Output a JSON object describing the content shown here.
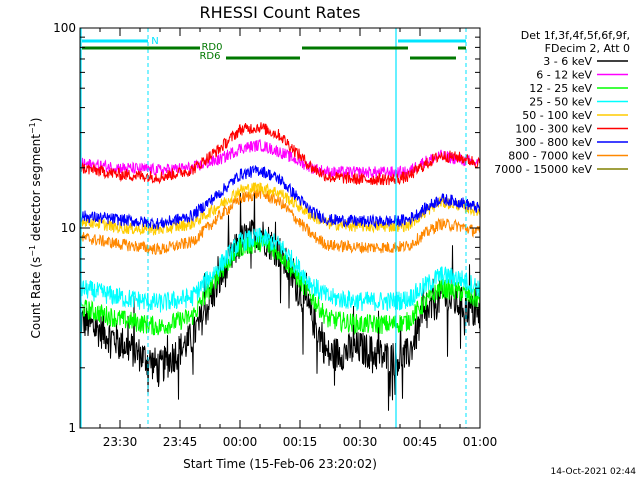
{
  "chart_data": {
    "type": "line",
    "title": "RHESSI Count Rates",
    "xlabel": "Start Time (15-Feb-06 23:20:02)",
    "ylabel": "Count Rate (s⁻¹ detector segment⁻¹)",
    "ylabel_main": "Count Rate (s",
    "ylabel_sup1": "−1",
    "ylabel_mid": " detector segment",
    "ylabel_sup2": "−1",
    "ylabel_end": ")",
    "yscale": "log",
    "ylim": [
      1,
      100
    ],
    "xlim_minutes": [
      0,
      100
    ],
    "x_ticks": [
      {
        "label": "23:30",
        "minute": 10
      },
      {
        "label": "23:45",
        "minute": 25
      },
      {
        "label": "00:00",
        "minute": 40
      },
      {
        "label": "00:15",
        "minute": 55
      },
      {
        "label": "00:30",
        "minute": 70
      },
      {
        "label": "00:45",
        "minute": 85
      },
      {
        "label": "01:00",
        "minute": 100
      }
    ],
    "y_ticks": [
      {
        "label": "1",
        "value": 1
      },
      {
        "label": "10",
        "value": 10
      },
      {
        "label": "100",
        "value": 100
      }
    ],
    "legend_header": [
      "Det 1f,3f,4f,5f,6f,9f,",
      "FDecim 2, Att 0"
    ],
    "legend_position": "right",
    "timestamp": "14-Oct-2021 02:44",
    "series": [
      {
        "name": "3 - 6 keV",
        "color": "#000000",
        "x": [
          0,
          10,
          20,
          28,
          35,
          40,
          45,
          50,
          58,
          62,
          70,
          78,
          82,
          85,
          90,
          95,
          100
        ],
        "values": [
          3.5,
          2.7,
          2.0,
          2.8,
          5.5,
          8.5,
          9.5,
          7.5,
          3.6,
          2.3,
          2.5,
          2.2,
          2.3,
          3.3,
          4.5,
          4.2,
          3.6
        ]
      },
      {
        "name": "6 - 12 keV",
        "color": "#ff00ff",
        "x": [
          0,
          10,
          20,
          28,
          35,
          40,
          45,
          50,
          58,
          62,
          70,
          78,
          82,
          85,
          90,
          95,
          100
        ],
        "values": [
          21,
          20,
          19.5,
          20,
          22,
          25,
          26,
          24,
          20,
          19,
          19,
          19,
          19,
          21,
          23,
          22,
          21
        ]
      },
      {
        "name": "12 - 25 keV",
        "color": "#00ff00",
        "x": [
          0,
          10,
          20,
          28,
          35,
          40,
          45,
          50,
          58,
          62,
          70,
          78,
          82,
          85,
          90,
          95,
          100
        ],
        "values": [
          4.0,
          3.5,
          3.2,
          3.6,
          6.0,
          8.0,
          8.5,
          7.5,
          4.5,
          3.5,
          3.3,
          3.3,
          3.4,
          4.0,
          5.0,
          4.8,
          4.3
        ]
      },
      {
        "name": "25 - 50 keV",
        "color": "#00ffff",
        "x": [
          0,
          10,
          20,
          28,
          35,
          40,
          45,
          50,
          58,
          62,
          70,
          78,
          82,
          85,
          90,
          95,
          100
        ],
        "values": [
          5.0,
          4.5,
          4.2,
          4.5,
          6.5,
          8.5,
          9.0,
          8.2,
          5.2,
          4.5,
          4.3,
          4.3,
          4.4,
          4.9,
          5.8,
          5.6,
          5.0
        ]
      },
      {
        "name": "50 - 100 keV",
        "color": "#ffcc00",
        "x": [
          0,
          10,
          20,
          28,
          35,
          40,
          45,
          50,
          58,
          62,
          70,
          78,
          82,
          85,
          90,
          95,
          100
        ],
        "values": [
          11,
          10,
          9.8,
          10.5,
          13,
          15.5,
          16,
          15,
          11.5,
          10.5,
          10.2,
          10.2,
          10.3,
          11.5,
          13.5,
          13,
          12
        ]
      },
      {
        "name": "100 - 300 keV",
        "color": "#ff0000",
        "x": [
          0,
          10,
          20,
          28,
          35,
          40,
          45,
          50,
          58,
          62,
          70,
          78,
          82,
          85,
          90,
          95,
          100
        ],
        "values": [
          20,
          18.5,
          18,
          19.5,
          25,
          31,
          32,
          29,
          20,
          18,
          17.5,
          17.5,
          18,
          20,
          23,
          22.5,
          21
        ]
      },
      {
        "name": "300 - 800 keV",
        "color": "#0000ff",
        "x": [
          0,
          10,
          20,
          28,
          35,
          40,
          45,
          50,
          58,
          62,
          70,
          78,
          82,
          85,
          90,
          95,
          100
        ],
        "values": [
          11.5,
          11,
          10.5,
          11.5,
          15,
          18.5,
          19.5,
          17.5,
          12,
          11,
          10.8,
          10.8,
          11,
          12,
          14,
          13.5,
          12.5
        ]
      },
      {
        "name": "800 - 7000 keV",
        "color": "#ff8800",
        "x": [
          0,
          10,
          20,
          28,
          35,
          40,
          45,
          50,
          58,
          62,
          70,
          78,
          82,
          85,
          90,
          95,
          100
        ],
        "values": [
          9.0,
          8.3,
          7.8,
          8.5,
          11.5,
          14,
          15,
          13.5,
          9.2,
          8.2,
          8.0,
          8.0,
          8.1,
          9.0,
          10.5,
          10.2,
          9.5
        ]
      },
      {
        "name": "7000 - 15000 keV",
        "color": "#808000",
        "x": [],
        "values": []
      }
    ],
    "annotations": {
      "vlines_solid_minutes": [
        0,
        79
      ],
      "vlines_dashed_minutes": [
        17,
        96.5
      ],
      "attenuator_bars": [
        {
          "label": "N",
          "color": "#00e5ff",
          "segments": [
            [
              0,
              17
            ],
            [
              79,
              96.5
            ]
          ],
          "level": "top"
        },
        {
          "label": "RD0",
          "color": "#007800",
          "segments": [
            [
              0,
              30
            ],
            [
              55,
              82
            ],
            [
              94,
              96.5
            ]
          ],
          "level": "middle"
        },
        {
          "label": "RD6",
          "color": "#007800",
          "segments": [
            [
              36,
              55
            ],
            [
              82,
              94
            ]
          ],
          "level": "lower"
        }
      ]
    }
  }
}
